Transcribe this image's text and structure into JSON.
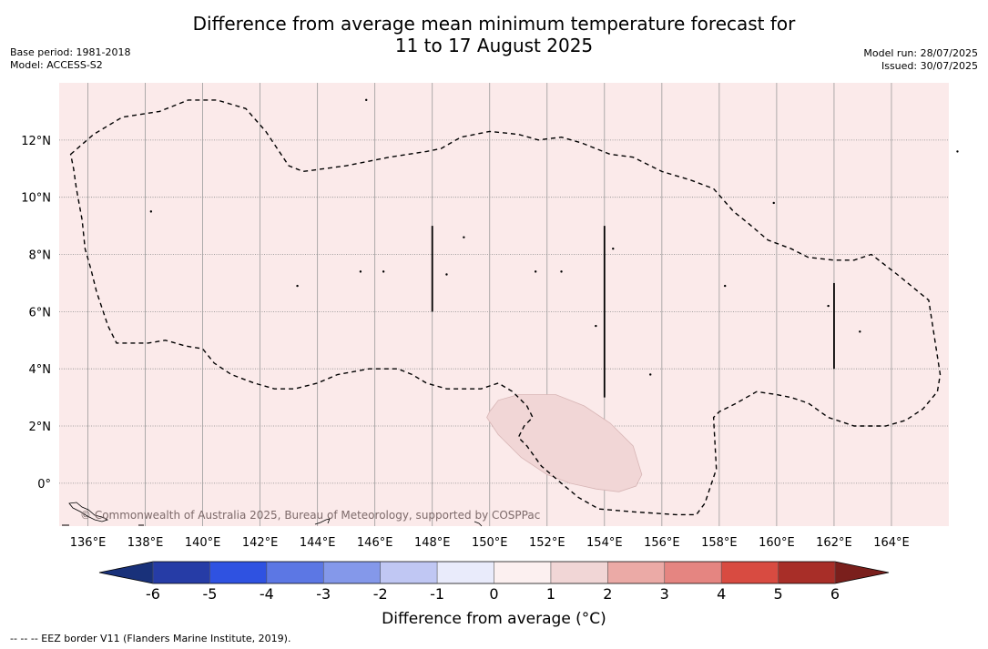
{
  "title": {
    "line1": "Difference from average mean minimum temperature forecast for",
    "line2": "11 to 17 August 2025"
  },
  "meta_left": {
    "base_period": "Base period: 1981-2018",
    "model": "Model: ACCESS-S2"
  },
  "meta_right": {
    "model_run": "Model run: 28/07/2025",
    "issued": "Issued: 30/07/2025"
  },
  "map": {
    "lon_range": [
      135,
      166
    ],
    "lat_range": [
      -1.5,
      14
    ],
    "lon_ticks": [
      136,
      138,
      140,
      142,
      144,
      146,
      148,
      150,
      152,
      154,
      156,
      158,
      160,
      162,
      164
    ],
    "lat_ticks": [
      0,
      2,
      4,
      6,
      8,
      10,
      12
    ],
    "lon_tick_labels": [
      "136°E",
      "138°E",
      "140°E",
      "142°E",
      "144°E",
      "146°E",
      "148°E",
      "150°E",
      "152°E",
      "154°E",
      "156°E",
      "158°E",
      "160°E",
      "162°E",
      "164°E"
    ],
    "lat_tick_labels": [
      "0°",
      "2°N",
      "4°N",
      "6°N",
      "8°N",
      "10°N",
      "12°N"
    ],
    "background_class": "0 to 1",
    "background_color": "#fbeaea",
    "anomaly_patch_class": "1 to 2",
    "anomaly_patch_color": "#f1d6d6",
    "eez_border": [
      [
        135.4,
        11.5
      ],
      [
        136.2,
        12.2
      ],
      [
        137.2,
        12.8
      ],
      [
        138.5,
        13.0
      ],
      [
        139.5,
        13.4
      ],
      [
        140.5,
        13.4
      ],
      [
        141.5,
        13.1
      ],
      [
        142.2,
        12.3
      ],
      [
        143.0,
        11.1
      ],
      [
        143.5,
        10.9
      ],
      [
        145,
        11.1
      ],
      [
        146.5,
        11.4
      ],
      [
        147.8,
        11.6
      ],
      [
        148.3,
        11.7
      ],
      [
        149.0,
        12.1
      ],
      [
        150.0,
        12.3
      ],
      [
        151.0,
        12.2
      ],
      [
        151.7,
        12.0
      ],
      [
        152.5,
        12.1
      ],
      [
        153.2,
        11.9
      ],
      [
        154.2,
        11.5
      ],
      [
        155.0,
        11.4
      ],
      [
        156.0,
        10.9
      ],
      [
        157.0,
        10.6
      ],
      [
        157.8,
        10.3
      ],
      [
        158.5,
        9.5
      ],
      [
        159.0,
        9.1
      ],
      [
        159.7,
        8.5
      ],
      [
        160.5,
        8.2
      ],
      [
        161.1,
        7.9
      ],
      [
        162.0,
        7.8
      ],
      [
        162.7,
        7.8
      ],
      [
        163.3,
        8.0
      ],
      [
        164.2,
        7.3
      ],
      [
        165.3,
        6.4
      ],
      [
        165.7,
        3.8
      ],
      [
        165.6,
        3.2
      ],
      [
        165.1,
        2.6
      ],
      [
        164.5,
        2.2
      ],
      [
        163.8,
        2.0
      ],
      [
        162.7,
        2.0
      ],
      [
        161.8,
        2.3
      ],
      [
        161.1,
        2.8
      ],
      [
        160.5,
        3.0
      ],
      [
        160.0,
        3.1
      ],
      [
        159.3,
        3.2
      ],
      [
        158.6,
        2.8
      ],
      [
        158.0,
        2.5
      ],
      [
        157.8,
        2.3
      ],
      [
        157.9,
        0.5
      ],
      [
        157.5,
        -0.7
      ],
      [
        157.2,
        -1.1
      ],
      [
        156.5,
        -1.1
      ],
      [
        155.0,
        -1.0
      ],
      [
        153.8,
        -0.9
      ],
      [
        153.1,
        -0.5
      ],
      [
        152.5,
        0.0
      ],
      [
        151.8,
        0.6
      ],
      [
        151.3,
        1.3
      ],
      [
        151.0,
        1.6
      ],
      [
        151.2,
        2.0
      ],
      [
        151.5,
        2.3
      ],
      [
        151.3,
        2.7
      ],
      [
        150.8,
        3.2
      ],
      [
        150.3,
        3.5
      ],
      [
        149.7,
        3.3
      ],
      [
        148.5,
        3.3
      ],
      [
        147.8,
        3.5
      ],
      [
        147.3,
        3.8
      ],
      [
        146.8,
        4.0
      ],
      [
        145.8,
        4.0
      ],
      [
        144.7,
        3.8
      ],
      [
        144.0,
        3.5
      ],
      [
        143.2,
        3.3
      ],
      [
        142.5,
        3.3
      ],
      [
        141.8,
        3.5
      ],
      [
        141.0,
        3.8
      ],
      [
        140.4,
        4.2
      ],
      [
        140.0,
        4.7
      ],
      [
        139.4,
        4.8
      ],
      [
        138.7,
        5.0
      ],
      [
        138.1,
        4.9
      ],
      [
        137.5,
        4.9
      ],
      [
        137.0,
        4.9
      ],
      [
        136.7,
        5.5
      ],
      [
        136.5,
        6.1
      ],
      [
        136.3,
        6.7
      ],
      [
        136.1,
        7.5
      ],
      [
        135.9,
        8.2
      ],
      [
        135.8,
        9.2
      ],
      [
        135.6,
        10.3
      ],
      [
        135.5,
        11.0
      ],
      [
        135.4,
        11.5
      ]
    ],
    "anomaly_patch": [
      [
        150.0,
        2.5
      ],
      [
        150.3,
        2.9
      ],
      [
        151.0,
        3.1
      ],
      [
        152.3,
        3.1
      ],
      [
        153.3,
        2.7
      ],
      [
        154.2,
        2.1
      ],
      [
        155.0,
        1.3
      ],
      [
        155.3,
        0.3
      ],
      [
        155.1,
        -0.1
      ],
      [
        154.5,
        -0.3
      ],
      [
        153.7,
        -0.2
      ],
      [
        152.8,
        0.0
      ],
      [
        152.0,
        0.3
      ],
      [
        151.1,
        0.9
      ],
      [
        150.3,
        1.7
      ],
      [
        149.9,
        2.3
      ],
      [
        150.0,
        2.5
      ]
    ],
    "vertical_lines": [
      {
        "lon": 148,
        "lat_from": 6.0,
        "lat_to": 9.0
      },
      {
        "lon": 154,
        "lat_from": 3.0,
        "lat_to": 9.0
      },
      {
        "lon": 162,
        "lat_from": 4.0,
        "lat_to": 7.0
      }
    ],
    "islands": [
      [
        145.7,
        13.4
      ],
      [
        138.2,
        9.5
      ],
      [
        143.3,
        6.9
      ],
      [
        145.5,
        7.4
      ],
      [
        146.3,
        7.4
      ],
      [
        148.5,
        7.3
      ],
      [
        149.1,
        8.6
      ],
      [
        151.6,
        7.4
      ],
      [
        152.5,
        7.4
      ],
      [
        153.7,
        5.5
      ],
      [
        154.3,
        8.2
      ],
      [
        155.6,
        3.8
      ],
      [
        158.2,
        6.9
      ],
      [
        159.9,
        9.8
      ],
      [
        161.8,
        6.2
      ],
      [
        162.9,
        5.3
      ],
      [
        166.3,
        11.6
      ]
    ],
    "copyright": "© Commonwealth of Australia 2025, Bureau of Meteorology, supported by COSPPac"
  },
  "colorbar": {
    "ticks": [
      "-6",
      "-5",
      "-4",
      "-3",
      "-2",
      "-1",
      "0",
      "1",
      "2",
      "3",
      "4",
      "5",
      "6"
    ],
    "colors": [
      "#263ca6",
      "#2f52e1",
      "#5c77e4",
      "#8498ea",
      "#c0c7f3",
      "#e9ebfb",
      "#fcf0f0",
      "#f1d6d6",
      "#ebaaa6",
      "#e58581",
      "#d84b41",
      "#a82e28"
    ],
    "under_color": "#19317a",
    "over_color": "#7a1f1c",
    "label": "Difference from average (°C)"
  },
  "footnote": "--  --  -- EEZ border V11 (Flanders Marine Institute, 2019)."
}
